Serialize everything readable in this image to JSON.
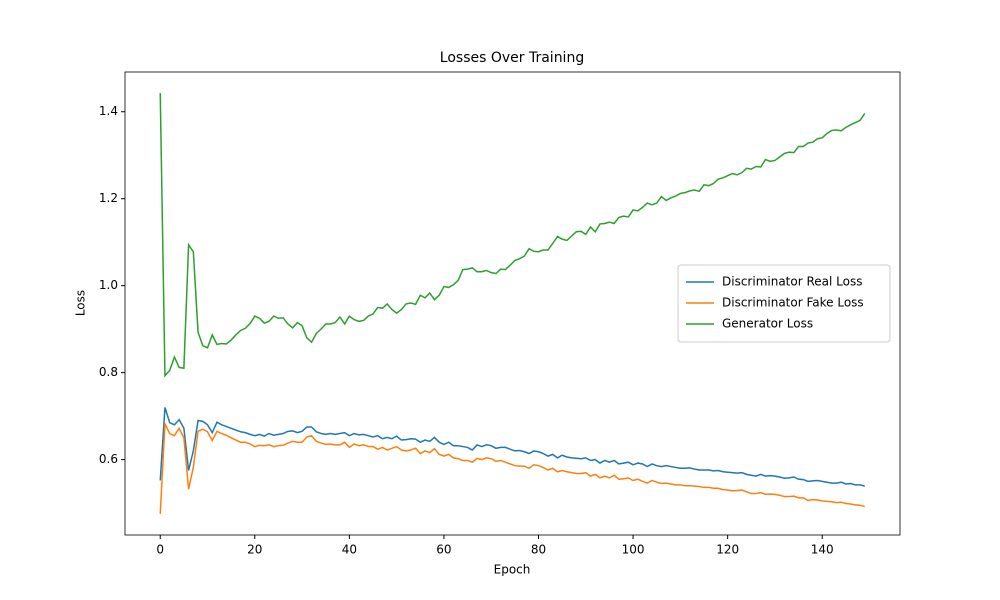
{
  "chart_data": {
    "type": "line",
    "title": "Losses Over Training",
    "x_label": "Epoch",
    "y_label": "Loss",
    "x": [
      0,
      1,
      2,
      3,
      4,
      5,
      6,
      7,
      8,
      9,
      10,
      11,
      12,
      13,
      14,
      15,
      16,
      17,
      18,
      19,
      20,
      21,
      22,
      23,
      24,
      25,
      26,
      27,
      28,
      29,
      30,
      31,
      32,
      33,
      34,
      35,
      36,
      37,
      38,
      39,
      40,
      41,
      42,
      43,
      44,
      45,
      46,
      47,
      48,
      49,
      50,
      51,
      52,
      53,
      54,
      55,
      56,
      57,
      58,
      59,
      60,
      61,
      62,
      63,
      64,
      65,
      66,
      67,
      68,
      69,
      70,
      71,
      72,
      73,
      74,
      75,
      76,
      77,
      78,
      79,
      80,
      81,
      82,
      83,
      84,
      85,
      86,
      87,
      88,
      89,
      90,
      91,
      92,
      93,
      94,
      95,
      96,
      97,
      98,
      99,
      100,
      101,
      102,
      103,
      104,
      105,
      106,
      107,
      108,
      109,
      110,
      111,
      112,
      113,
      114,
      115,
      116,
      117,
      118,
      119,
      120,
      121,
      122,
      123,
      124,
      125,
      126,
      127,
      128,
      129,
      130,
      131,
      132,
      133,
      134,
      135,
      136,
      137,
      138,
      139,
      140,
      141,
      142,
      143,
      144,
      145,
      146,
      147,
      148,
      149
    ],
    "series": [
      {
        "name": "Discriminator Real Loss",
        "color": "#1f77b4",
        "values": [
          0.552,
          0.72,
          0.685,
          0.68,
          0.692,
          0.672,
          0.575,
          0.62,
          0.69,
          0.688,
          0.68,
          0.662,
          0.686,
          0.68,
          0.676,
          0.672,
          0.668,
          0.664,
          0.662,
          0.658,
          0.655,
          0.658,
          0.654,
          0.66,
          0.656,
          0.658,
          0.66,
          0.665,
          0.666,
          0.662,
          0.665,
          0.675,
          0.675,
          0.664,
          0.66,
          0.658,
          0.66,
          0.658,
          0.66,
          0.662,
          0.655,
          0.66,
          0.657,
          0.658,
          0.655,
          0.652,
          0.655,
          0.648,
          0.651,
          0.648,
          0.654,
          0.645,
          0.646,
          0.648,
          0.647,
          0.64,
          0.645,
          0.642,
          0.651,
          0.64,
          0.635,
          0.64,
          0.632,
          0.632,
          0.63,
          0.628,
          0.622,
          0.634,
          0.63,
          0.634,
          0.632,
          0.626,
          0.628,
          0.628,
          0.624,
          0.62,
          0.621,
          0.618,
          0.614,
          0.62,
          0.618,
          0.614,
          0.608,
          0.612,
          0.604,
          0.61,
          0.606,
          0.604,
          0.603,
          0.602,
          0.604,
          0.598,
          0.6,
          0.592,
          0.598,
          0.594,
          0.598,
          0.59,
          0.592,
          0.594,
          0.588,
          0.592,
          0.59,
          0.584,
          0.59,
          0.586,
          0.584,
          0.586,
          0.584,
          0.582,
          0.58,
          0.58,
          0.581,
          0.578,
          0.576,
          0.576,
          0.576,
          0.574,
          0.575,
          0.572,
          0.571,
          0.57,
          0.569,
          0.57,
          0.566,
          0.564,
          0.562,
          0.566,
          0.562,
          0.563,
          0.562,
          0.56,
          0.557,
          0.558,
          0.56,
          0.555,
          0.554,
          0.55,
          0.551,
          0.552,
          0.55,
          0.548,
          0.546,
          0.546,
          0.548,
          0.544,
          0.545,
          0.542,
          0.542,
          0.539
        ]
      },
      {
        "name": "Discriminator Fake Loss",
        "color": "#ff7f0e",
        "values": [
          0.475,
          0.682,
          0.66,
          0.655,
          0.672,
          0.65,
          0.532,
          0.582,
          0.665,
          0.67,
          0.664,
          0.644,
          0.665,
          0.66,
          0.656,
          0.65,
          0.645,
          0.64,
          0.64,
          0.636,
          0.63,
          0.633,
          0.632,
          0.634,
          0.63,
          0.632,
          0.633,
          0.638,
          0.642,
          0.64,
          0.64,
          0.652,
          0.655,
          0.642,
          0.638,
          0.635,
          0.636,
          0.634,
          0.634,
          0.64,
          0.628,
          0.636,
          0.632,
          0.634,
          0.63,
          0.63,
          0.624,
          0.628,
          0.622,
          0.626,
          0.63,
          0.622,
          0.62,
          0.622,
          0.626,
          0.614,
          0.62,
          0.616,
          0.625,
          0.612,
          0.608,
          0.612,
          0.604,
          0.602,
          0.598,
          0.598,
          0.594,
          0.603,
          0.6,
          0.604,
          0.602,
          0.596,
          0.598,
          0.594,
          0.59,
          0.586,
          0.585,
          0.585,
          0.58,
          0.588,
          0.586,
          0.582,
          0.576,
          0.58,
          0.572,
          0.575,
          0.572,
          0.57,
          0.568,
          0.568,
          0.57,
          0.562,
          0.566,
          0.558,
          0.562,
          0.558,
          0.564,
          0.555,
          0.556,
          0.558,
          0.552,
          0.555,
          0.55,
          0.546,
          0.552,
          0.548,
          0.545,
          0.546,
          0.544,
          0.542,
          0.542,
          0.54,
          0.54,
          0.539,
          0.538,
          0.536,
          0.536,
          0.534,
          0.534,
          0.531,
          0.53,
          0.528,
          0.529,
          0.53,
          0.526,
          0.522,
          0.522,
          0.524,
          0.52,
          0.521,
          0.52,
          0.518,
          0.515,
          0.515,
          0.516,
          0.512,
          0.512,
          0.506,
          0.508,
          0.507,
          0.505,
          0.504,
          0.503,
          0.501,
          0.502,
          0.499,
          0.498,
          0.496,
          0.495,
          0.492
        ]
      },
      {
        "name": "Generator Loss",
        "color": "#2ca02c",
        "values": [
          1.443,
          0.793,
          0.805,
          0.836,
          0.812,
          0.81,
          1.094,
          1.078,
          0.893,
          0.862,
          0.857,
          0.887,
          0.865,
          0.867,
          0.866,
          0.875,
          0.887,
          0.897,
          0.902,
          0.913,
          0.93,
          0.925,
          0.914,
          0.918,
          0.93,
          0.925,
          0.926,
          0.912,
          0.903,
          0.915,
          0.908,
          0.88,
          0.87,
          0.89,
          0.9,
          0.912,
          0.912,
          0.915,
          0.928,
          0.912,
          0.93,
          0.922,
          0.918,
          0.92,
          0.93,
          0.935,
          0.95,
          0.948,
          0.958,
          0.945,
          0.937,
          0.945,
          0.958,
          0.96,
          0.957,
          0.978,
          0.972,
          0.983,
          0.968,
          0.978,
          0.998,
          0.996,
          1.002,
          1.012,
          1.037,
          1.038,
          1.041,
          1.032,
          1.032,
          1.035,
          1.03,
          1.028,
          1.038,
          1.037,
          1.047,
          1.058,
          1.062,
          1.068,
          1.085,
          1.079,
          1.078,
          1.082,
          1.082,
          1.097,
          1.113,
          1.107,
          1.104,
          1.114,
          1.124,
          1.125,
          1.118,
          1.135,
          1.124,
          1.142,
          1.143,
          1.146,
          1.143,
          1.157,
          1.16,
          1.158,
          1.174,
          1.172,
          1.18,
          1.19,
          1.186,
          1.19,
          1.205,
          1.196,
          1.202,
          1.206,
          1.212,
          1.214,
          1.218,
          1.22,
          1.217,
          1.232,
          1.23,
          1.235,
          1.245,
          1.248,
          1.253,
          1.258,
          1.255,
          1.26,
          1.27,
          1.268,
          1.274,
          1.273,
          1.29,
          1.286,
          1.288,
          1.296,
          1.304,
          1.307,
          1.306,
          1.32,
          1.32,
          1.328,
          1.33,
          1.338,
          1.34,
          1.35,
          1.357,
          1.358,
          1.356,
          1.364,
          1.37,
          1.375,
          1.38,
          1.396
        ]
      }
    ],
    "xlim": [
      -7.45,
      156.45
    ],
    "ylim": [
      0.4266,
      1.4914
    ],
    "xticks": [
      0,
      20,
      40,
      60,
      80,
      100,
      120,
      140
    ],
    "yticks": [
      0.6,
      0.8,
      {
        "value": 1,
        "label": "1.0"
      },
      1.2,
      1.4
    ],
    "grid": false,
    "legend": "center right"
  }
}
